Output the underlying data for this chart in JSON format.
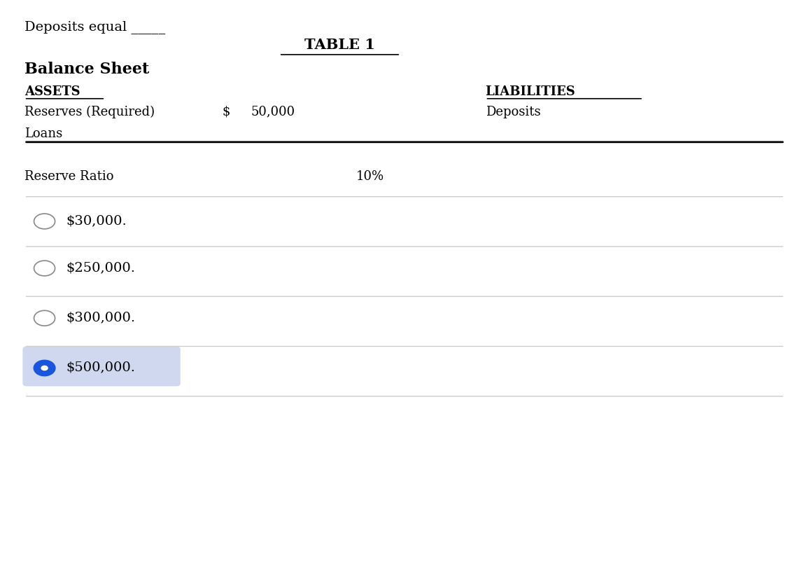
{
  "title": "TABLE 1",
  "heading": "Deposits equal _____",
  "balance_sheet_title": "Balance Sheet",
  "assets_label": "ASSETS",
  "liabilities_label": "LIABILITIES",
  "reserves_label": "Reserves (Required)",
  "reserves_dollar": "$",
  "reserves_value": "50,000",
  "deposits_label": "Deposits",
  "loans_label": "Loans",
  "reserve_ratio_label": "Reserve Ratio",
  "reserve_ratio_value": "10%",
  "options": [
    {
      "text": "$30,000.",
      "selected": false
    },
    {
      "text": "$250,000.",
      "selected": false
    },
    {
      "text": "$300,000.",
      "selected": false
    },
    {
      "text": "$500,000.",
      "selected": true
    }
  ],
  "bg_color": "#ffffff",
  "text_color": "#000000",
  "line_color": "#000000",
  "separator_color": "#cccccc",
  "selected_fill_color": "#1a56db",
  "selected_highlight": "#d0d8f0",
  "font_size_heading": 14,
  "font_size_title": 15,
  "font_size_balance": 16,
  "font_size_labels": 13,
  "font_size_options": 14
}
